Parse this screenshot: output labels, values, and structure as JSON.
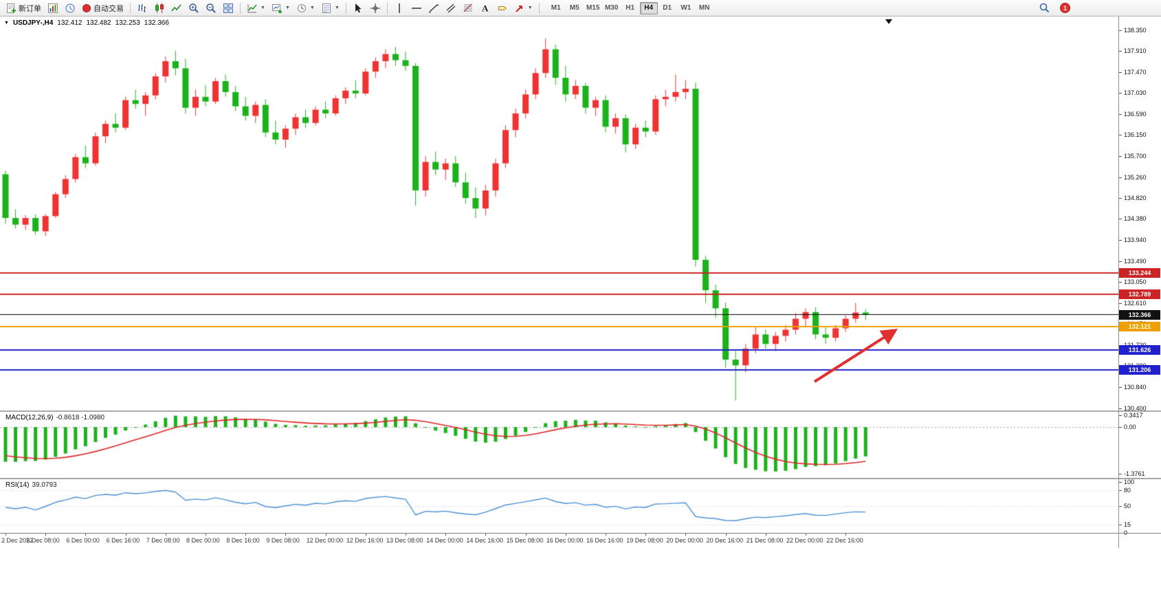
{
  "toolbar": {
    "new_order_label": "新订单",
    "auto_trading_label": "自动交易",
    "timeframes": [
      "M1",
      "M5",
      "M15",
      "M30",
      "H1",
      "H4",
      "D1",
      "W1",
      "MN"
    ],
    "active_timeframe": "H4",
    "notification_count": "1",
    "icon_names": [
      "new-order-icon",
      "chart-profiles-icon",
      "market-watch-icon",
      "auto-trading-icon",
      "bar-chart-icon",
      "candlestick-chart-icon",
      "line-chart-icon",
      "zoom-in-icon",
      "zoom-out-icon",
      "tile-windows-icon",
      "indicators-icon",
      "new-chart-icon",
      "periods-icon",
      "templates-icon",
      "cursor-icon",
      "crosshair-icon",
      "vertical-line-icon",
      "horizontal-line-icon",
      "trendline-icon",
      "channel-icon",
      "fibonacci-icon",
      "text-icon",
      "text-label-icon",
      "arrows-icon",
      "search-icon",
      "notification-badge"
    ]
  },
  "symbol_bar": {
    "symbol": "USDJPY-,H4",
    "open": "132.412",
    "high": "132.482",
    "low": "132.253",
    "close": "132.366"
  },
  "price_axis": {
    "ticks": [
      "138.350",
      "137.910",
      "137.470",
      "137.030",
      "136.590",
      "136.150",
      "135.700",
      "135.260",
      "134.820",
      "134.380",
      "133.940",
      "133.490",
      "133.050",
      "132.610",
      "132.170",
      "131.730",
      "131.290",
      "130.840",
      "130.400"
    ],
    "tags": [
      {
        "text": "133.244",
        "color": "#cc2424"
      },
      {
        "text": "132.789",
        "color": "#cc2424"
      },
      {
        "text": "132.366",
        "color": "#111111"
      },
      {
        "text": "132.121",
        "color": "#efa000"
      },
      {
        "text": "131.626",
        "color": "#2020cc"
      },
      {
        "text": "131.206",
        "color": "#2020cc"
      }
    ]
  },
  "macd_panel": {
    "title": "MACD(12,26,9)",
    "values": "-0.8618 -1.0980"
  },
  "rsi_panel": {
    "title": "RSI(14)",
    "value": "39.0793"
  },
  "chart_data": {
    "type": "candlestick",
    "title": "USDJPY-,H4",
    "timeframe": "H4",
    "up_color": "#ef3333",
    "down_color": "#1cb21c",
    "y_range": [
      130.35,
      138.64
    ],
    "x_label_every": 4,
    "x_labels": [
      "2 Dec 2022",
      "5 Dec 08:00",
      "6 Dec 00:00",
      "6 Dec 16:00",
      "7 Dec 08:00",
      "8 Dec 00:00",
      "8 Dec 16:00",
      "9 Dec 08:00",
      "12 Dec 00:00",
      "12 Dec 16:00",
      "13 Dec 08:00",
      "14 Dec 00:00",
      "14 Dec 16:00",
      "15 Dec 08:00",
      "16 Dec 00:00",
      "16 Dec 16:00",
      "19 Dec 08:00",
      "20 Dec 00:00",
      "20 Dec 16:00",
      "21 Dec 08:00",
      "22 Dec 00:00",
      "22 Dec 16:00"
    ],
    "candles": [
      [
        135.32,
        135.4,
        134.28,
        134.4
      ],
      [
        134.4,
        134.58,
        134.18,
        134.26
      ],
      [
        134.26,
        134.46,
        134.15,
        134.4
      ],
      [
        134.4,
        134.48,
        134.05,
        134.12
      ],
      [
        134.12,
        134.48,
        134.02,
        134.44
      ],
      [
        134.44,
        134.95,
        134.4,
        134.9
      ],
      [
        134.9,
        135.3,
        134.82,
        135.22
      ],
      [
        135.22,
        135.75,
        135.15,
        135.68
      ],
      [
        135.68,
        135.92,
        135.45,
        135.55
      ],
      [
        135.55,
        136.2,
        135.5,
        136.12
      ],
      [
        136.12,
        136.45,
        135.98,
        136.38
      ],
      [
        136.38,
        136.6,
        136.2,
        136.3
      ],
      [
        136.3,
        136.95,
        136.25,
        136.88
      ],
      [
        136.88,
        137.1,
        136.7,
        136.8
      ],
      [
        136.8,
        137.05,
        136.55,
        136.98
      ],
      [
        136.98,
        137.45,
        136.9,
        137.38
      ],
      [
        137.38,
        137.8,
        137.25,
        137.7
      ],
      [
        137.7,
        137.92,
        137.4,
        137.55
      ],
      [
        137.55,
        137.75,
        136.6,
        136.72
      ],
      [
        136.72,
        137.1,
        136.55,
        136.95
      ],
      [
        136.95,
        137.2,
        136.75,
        136.85
      ],
      [
        136.85,
        137.35,
        136.8,
        137.28
      ],
      [
        137.28,
        137.42,
        136.95,
        137.05
      ],
      [
        137.05,
        137.18,
        136.65,
        136.75
      ],
      [
        136.75,
        136.95,
        136.45,
        136.55
      ],
      [
        136.55,
        136.85,
        136.4,
        136.78
      ],
      [
        136.78,
        136.9,
        136.1,
        136.2
      ],
      [
        136.2,
        136.45,
        135.95,
        136.05
      ],
      [
        136.05,
        136.35,
        135.88,
        136.28
      ],
      [
        136.28,
        136.6,
        136.15,
        136.52
      ],
      [
        136.52,
        136.68,
        136.3,
        136.4
      ],
      [
        136.4,
        136.75,
        136.35,
        136.68
      ],
      [
        136.68,
        136.85,
        136.5,
        136.6
      ],
      [
        136.6,
        136.98,
        136.55,
        136.92
      ],
      [
        136.92,
        137.15,
        136.8,
        137.08
      ],
      [
        137.08,
        137.3,
        136.92,
        137.02
      ],
      [
        137.02,
        137.55,
        136.98,
        137.48
      ],
      [
        137.48,
        137.78,
        137.35,
        137.7
      ],
      [
        137.7,
        137.95,
        137.55,
        137.85
      ],
      [
        137.85,
        138.0,
        137.6,
        137.72
      ],
      [
        137.72,
        137.9,
        137.5,
        137.6
      ],
      [
        137.6,
        137.66,
        134.66,
        134.98
      ],
      [
        134.98,
        135.7,
        134.85,
        135.58
      ],
      [
        135.58,
        135.8,
        135.3,
        135.42
      ],
      [
        135.42,
        135.65,
        135.2,
        135.55
      ],
      [
        135.55,
        135.7,
        135.05,
        135.15
      ],
      [
        135.15,
        135.35,
        134.7,
        134.82
      ],
      [
        134.82,
        135.05,
        134.4,
        134.6
      ],
      [
        134.6,
        135.1,
        134.45,
        134.98
      ],
      [
        134.98,
        135.65,
        134.85,
        135.55
      ],
      [
        135.55,
        136.35,
        135.45,
        136.25
      ],
      [
        136.25,
        136.7,
        136.1,
        136.6
      ],
      [
        136.6,
        137.1,
        136.5,
        137.0
      ],
      [
        137.0,
        137.55,
        136.9,
        137.45
      ],
      [
        137.45,
        138.18,
        137.35,
        137.95
      ],
      [
        137.95,
        138.05,
        137.2,
        137.35
      ],
      [
        137.35,
        137.6,
        136.85,
        137.0
      ],
      [
        137.0,
        137.3,
        136.9,
        137.18
      ],
      [
        137.18,
        137.25,
        136.6,
        136.72
      ],
      [
        136.72,
        136.95,
        136.55,
        136.88
      ],
      [
        136.88,
        136.98,
        136.2,
        136.32
      ],
      [
        136.32,
        136.6,
        136.18,
        136.5
      ],
      [
        136.5,
        136.58,
        135.78,
        135.95
      ],
      [
        135.95,
        136.38,
        135.85,
        136.3
      ],
      [
        136.3,
        136.45,
        136.1,
        136.22
      ],
      [
        136.22,
        136.98,
        136.15,
        136.9
      ],
      [
        136.9,
        137.1,
        136.75,
        136.95
      ],
      [
        136.95,
        137.42,
        136.85,
        137.05
      ],
      [
        137.05,
        137.3,
        136.9,
        137.12
      ],
      [
        137.12,
        137.25,
        133.38,
        133.52
      ],
      [
        133.52,
        133.6,
        132.62,
        132.88
      ],
      [
        132.88,
        133.0,
        132.3,
        132.5
      ],
      [
        132.5,
        132.62,
        131.25,
        131.42
      ],
      [
        131.42,
        131.6,
        130.56,
        131.3
      ],
      [
        131.3,
        131.75,
        131.15,
        131.65
      ],
      [
        131.65,
        132.1,
        131.55,
        131.95
      ],
      [
        131.95,
        132.05,
        131.65,
        131.75
      ],
      [
        131.75,
        132.0,
        131.6,
        131.92
      ],
      [
        131.92,
        132.15,
        131.8,
        132.05
      ],
      [
        132.05,
        132.4,
        131.95,
        132.28
      ],
      [
        132.28,
        132.5,
        132.1,
        132.42
      ],
      [
        132.42,
        132.52,
        131.85,
        131.95
      ],
      [
        131.95,
        132.1,
        131.75,
        131.88
      ],
      [
        131.88,
        132.15,
        131.8,
        132.08
      ],
      [
        132.08,
        132.35,
        132.0,
        132.28
      ],
      [
        132.28,
        132.61,
        132.2,
        132.41
      ],
      [
        132.412,
        132.482,
        132.253,
        132.366
      ]
    ],
    "hlines": [
      {
        "price": 133.244,
        "color": "#cc2424",
        "w": 2
      },
      {
        "price": 132.789,
        "color": "#cc2424",
        "w": 2
      },
      {
        "price": 132.366,
        "color": "#000000",
        "w": 1
      },
      {
        "price": 132.121,
        "color": "#efa000",
        "w": 2
      },
      {
        "price": 131.626,
        "color": "#2020cc",
        "w": 2
      },
      {
        "price": 131.206,
        "color": "#2020cc",
        "w": 2
      }
    ],
    "arrow": {
      "from": [
        1185,
        531
      ],
      "to": [
        1300,
        458
      ],
      "color": "#e03030",
      "width": 4
    },
    "macd": {
      "fast": 12,
      "slow": 26,
      "signal_period": 9,
      "main_value": -0.8618,
      "signal_value": -1.098,
      "axis": [
        "0.3417",
        "0.00",
        "-1.3761"
      ],
      "range": [
        0.45,
        -1.5
      ],
      "seeds": {
        "ema_fast": 135.4,
        "ema_slow": 136.42,
        "signal": -0.8
      },
      "bar_color": "#1cb21c",
      "signal_color": "#dd2222"
    },
    "rsi": {
      "period": 14,
      "value": 39.0793,
      "axis": [
        "100",
        "80",
        "50",
        "15",
        "0"
      ],
      "levels": [
        80,
        50,
        15
      ],
      "line_color": "#4a8fd4",
      "seeds": {
        "avg_gain": 0.09,
        "avg_loss": 0.1
      }
    }
  }
}
